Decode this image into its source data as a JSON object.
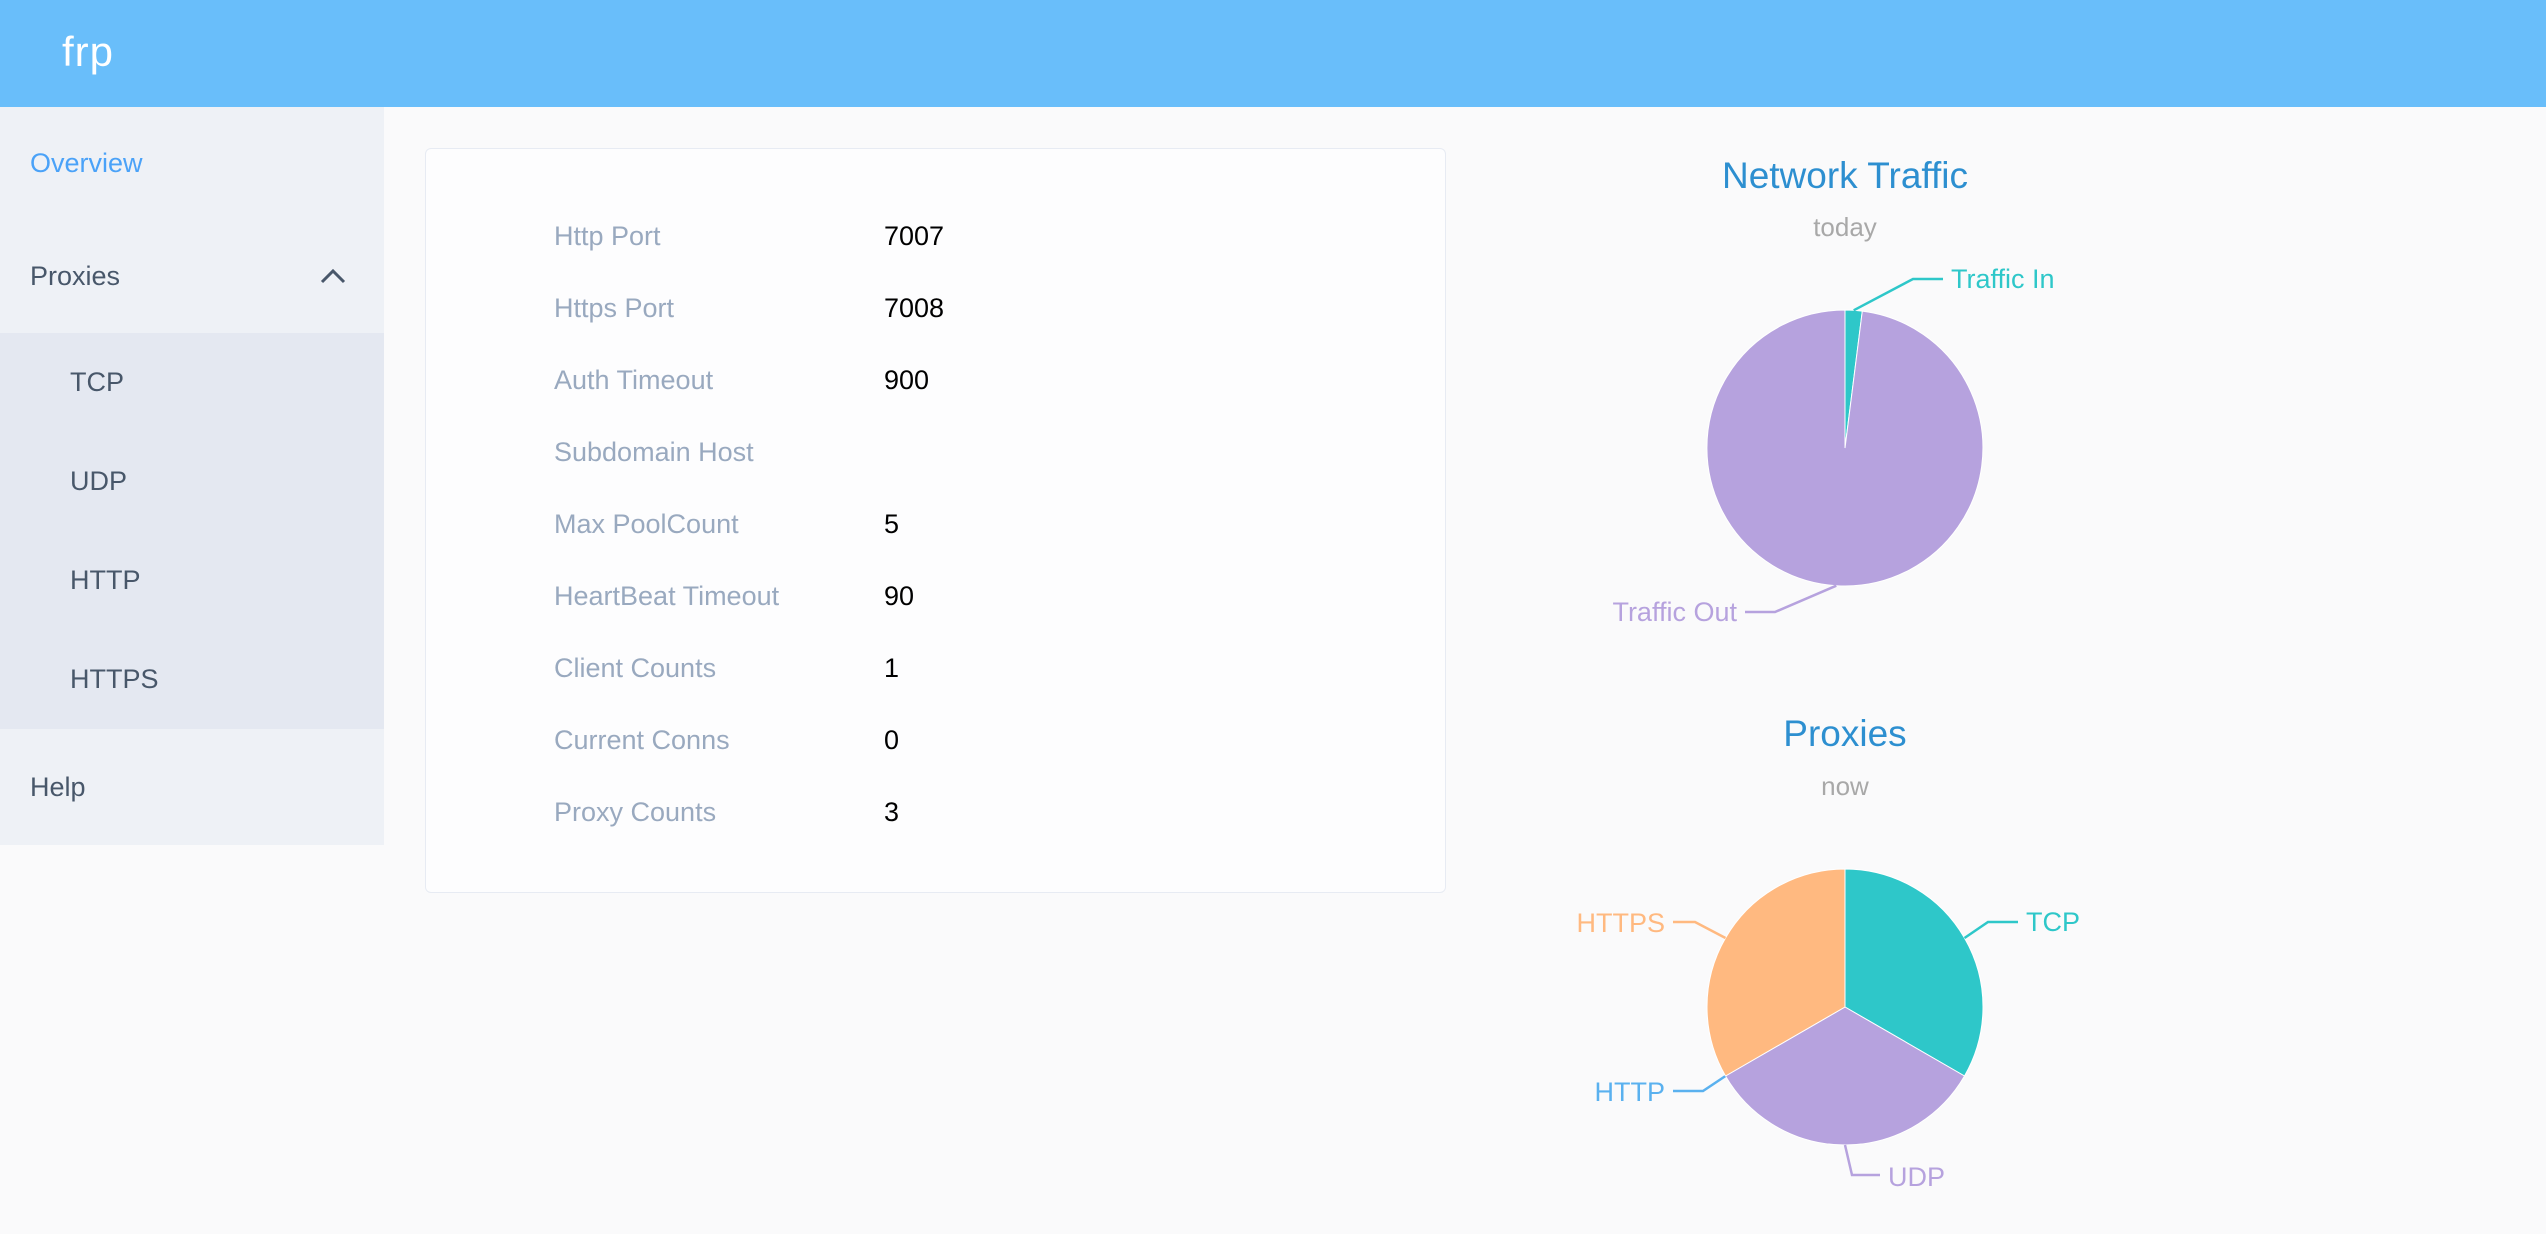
{
  "app": {
    "logo_text": "frp"
  },
  "colors": {
    "header_bg": "#69befa",
    "active_menu": "#4aa2f8",
    "sidebar_text": "#48576a",
    "chart_title": "#2d8fd0",
    "info_label_gray": "#99a9bf"
  },
  "sidebar": {
    "items": [
      {
        "label": "Overview",
        "active": true
      },
      {
        "label": "Proxies",
        "expanded": true,
        "children": [
          {
            "label": "TCP"
          },
          {
            "label": "UDP"
          },
          {
            "label": "HTTP"
          },
          {
            "label": "HTTPS"
          }
        ]
      },
      {
        "label": "Help"
      }
    ]
  },
  "overview": {
    "rows": [
      {
        "label": "Http Port",
        "value": "7007"
      },
      {
        "label": "Https Port",
        "value": "7008"
      },
      {
        "label": "Auth Timeout",
        "value": "900"
      },
      {
        "label": "Subdomain Host",
        "value": ""
      },
      {
        "label": "Max PoolCount",
        "value": "5"
      },
      {
        "label": "HeartBeat Timeout",
        "value": "90"
      },
      {
        "label": "Client Counts",
        "value": "1"
      },
      {
        "label": "Current Conns",
        "value": "0"
      },
      {
        "label": "Proxy Counts",
        "value": "3"
      }
    ]
  },
  "chart_data": [
    {
      "type": "pie",
      "title": "Network Traffic",
      "subtitle": "today",
      "legend_position": "none",
      "labels": "outside",
      "value_unit": "percent (estimated from slice angles)",
      "series": [
        {
          "name": "Traffic In",
          "value": 2,
          "color": "#2ec7c9"
        },
        {
          "name": "Traffic Out",
          "value": 98,
          "color": "#b6a2de"
        }
      ]
    },
    {
      "type": "pie",
      "title": "Proxies",
      "subtitle": "now",
      "legend_position": "none",
      "labels": "outside",
      "value_unit": "proxy count",
      "series": [
        {
          "name": "TCP",
          "value": 1,
          "color": "#2ec7c9"
        },
        {
          "name": "UDP",
          "value": 1,
          "color": "#b6a2de"
        },
        {
          "name": "HTTP",
          "value": 0,
          "color": "#5ab1ef"
        },
        {
          "name": "HTTPS",
          "value": 1,
          "color": "#ffb980"
        }
      ]
    }
  ]
}
